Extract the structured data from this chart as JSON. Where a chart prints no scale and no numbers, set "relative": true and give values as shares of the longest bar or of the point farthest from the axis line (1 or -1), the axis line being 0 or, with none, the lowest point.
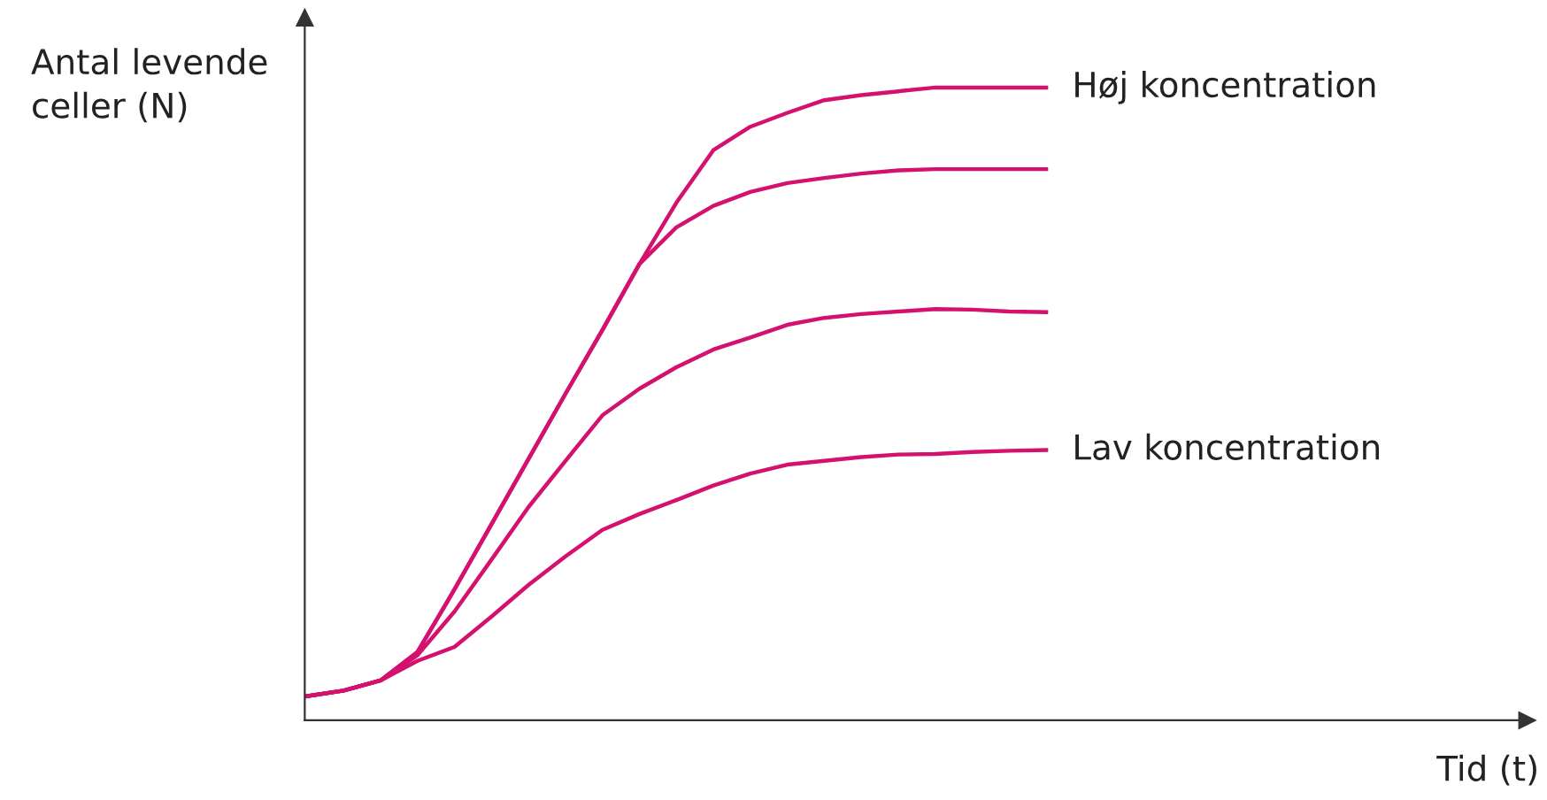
{
  "chart_data": {
    "type": "line",
    "relative": true,
    "xlabel": "Tid (t)",
    "ylabel": "Antal levende\nceller (N)",
    "grid": false,
    "legend": false,
    "marker": "none",
    "line_style": "solid",
    "categories": [
      null,
      null,
      null,
      null,
      null,
      null,
      null,
      null,
      null,
      null,
      null,
      null,
      null,
      null,
      null,
      null,
      null,
      null,
      null,
      null,
      null,
      null,
      null,
      null,
      null,
      null,
      null,
      null,
      null,
      null,
      null,
      null,
      null,
      null
    ],
    "series": [
      {
        "name": "Høj koncentration",
        "color": "#d4116f",
        "values": [
          0.038,
          0.047,
          0.063,
          0.108,
          0.207,
          0.31,
          0.413,
          0.516,
          0.617,
          0.721,
          0.818,
          0.901,
          0.938,
          0.96,
          0.98,
          0.988,
          0.994,
          1,
          1,
          1,
          1,
          null,
          null,
          null,
          null,
          null,
          null,
          null,
          null,
          null,
          null,
          null,
          null,
          null
        ]
      },
      {
        "color": "#d4116f",
        "values": [
          0.038,
          0.047,
          0.063,
          0.108,
          0.207,
          0.31,
          0.413,
          0.516,
          0.617,
          0.721,
          0.779,
          0.813,
          0.835,
          0.849,
          0.857,
          0.864,
          0.869,
          0.871,
          0.871,
          0.871,
          0.871,
          null,
          null,
          null,
          null,
          null,
          null,
          null,
          null,
          null,
          null,
          null,
          null,
          null
        ]
      },
      {
        "color": "#d4116f",
        "values": [
          0.038,
          0.047,
          0.063,
          0.103,
          0.172,
          0.254,
          0.337,
          0.41,
          0.482,
          0.524,
          0.558,
          0.586,
          0.605,
          0.625,
          0.636,
          0.642,
          0.646,
          0.65,
          0.649,
          0.646,
          0.645,
          null,
          null,
          null,
          null,
          null,
          null,
          null,
          null,
          null,
          null,
          null,
          null,
          null
        ]
      },
      {
        "name": "Lav koncentration",
        "color": "#d4116f",
        "values": [
          0.038,
          0.047,
          0.063,
          0.094,
          0.116,
          0.164,
          0.214,
          0.259,
          0.301,
          0.326,
          0.348,
          0.371,
          0.39,
          0.404,
          0.41,
          0.416,
          0.42,
          0.421,
          0.424,
          0.426,
          0.427,
          null,
          null,
          null,
          null,
          null,
          null,
          null,
          null,
          null,
          null,
          null,
          null,
          null
        ]
      }
    ]
  }
}
